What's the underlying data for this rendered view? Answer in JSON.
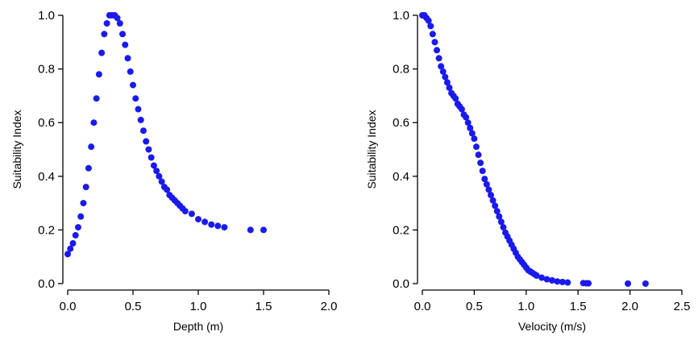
{
  "colors": {
    "points": "#1a1aee",
    "axes": "#000000"
  },
  "chart_data": [
    {
      "type": "scatter",
      "title": "",
      "xlabel": "Depth (m)",
      "ylabel": "Suitability Index",
      "xlim": [
        0,
        2.0
      ],
      "ylim": [
        0,
        1.0
      ],
      "xticks": [
        "0.0",
        "0.5",
        "1.0",
        "1.5",
        "2.0"
      ],
      "yticks": [
        "0.0",
        "0.2",
        "0.4",
        "0.6",
        "0.8",
        "1.0"
      ],
      "grid": false,
      "x": [
        0.0,
        0.02,
        0.04,
        0.06,
        0.08,
        0.1,
        0.12,
        0.14,
        0.16,
        0.18,
        0.2,
        0.22,
        0.24,
        0.26,
        0.28,
        0.3,
        0.32,
        0.34,
        0.36,
        0.38,
        0.4,
        0.42,
        0.44,
        0.46,
        0.48,
        0.5,
        0.52,
        0.54,
        0.56,
        0.58,
        0.6,
        0.62,
        0.64,
        0.66,
        0.68,
        0.7,
        0.72,
        0.74,
        0.76,
        0.78,
        0.8,
        0.82,
        0.84,
        0.86,
        0.88,
        0.9,
        0.95,
        1.0,
        1.05,
        1.1,
        1.15,
        1.2,
        1.4,
        1.5
      ],
      "y": [
        0.11,
        0.13,
        0.15,
        0.18,
        0.21,
        0.25,
        0.3,
        0.36,
        0.43,
        0.51,
        0.6,
        0.69,
        0.78,
        0.86,
        0.93,
        0.97,
        1.0,
        1.0,
        1.0,
        0.99,
        0.97,
        0.93,
        0.89,
        0.84,
        0.79,
        0.74,
        0.69,
        0.65,
        0.61,
        0.57,
        0.53,
        0.5,
        0.47,
        0.44,
        0.42,
        0.4,
        0.38,
        0.36,
        0.35,
        0.33,
        0.32,
        0.31,
        0.3,
        0.29,
        0.28,
        0.27,
        0.26,
        0.24,
        0.23,
        0.22,
        0.215,
        0.21,
        0.2,
        0.2
      ]
    },
    {
      "type": "scatter",
      "title": "",
      "xlabel": "Velocity (m/s)",
      "ylabel": "Suitability Index",
      "xlim": [
        0,
        2.5
      ],
      "ylim": [
        0,
        1.0
      ],
      "xticks": [
        "0.0",
        "0.5",
        "1.0",
        "1.5",
        "2.0",
        "2.5"
      ],
      "yticks": [
        "0.0",
        "0.2",
        "0.4",
        "0.6",
        "0.8",
        "1.0"
      ],
      "grid": false,
      "x": [
        0.0,
        0.02,
        0.04,
        0.06,
        0.08,
        0.1,
        0.12,
        0.14,
        0.16,
        0.18,
        0.2,
        0.22,
        0.24,
        0.26,
        0.28,
        0.3,
        0.32,
        0.34,
        0.36,
        0.38,
        0.4,
        0.42,
        0.44,
        0.46,
        0.48,
        0.5,
        0.52,
        0.54,
        0.56,
        0.58,
        0.6,
        0.62,
        0.64,
        0.66,
        0.68,
        0.7,
        0.72,
        0.74,
        0.76,
        0.78,
        0.8,
        0.82,
        0.84,
        0.86,
        0.88,
        0.9,
        0.92,
        0.94,
        0.96,
        0.98,
        1.0,
        1.02,
        1.04,
        1.06,
        1.08,
        1.1,
        1.15,
        1.2,
        1.25,
        1.3,
        1.35,
        1.4,
        1.55,
        1.58,
        1.6,
        1.98,
        2.15
      ],
      "y": [
        1.0,
        1.0,
        0.99,
        0.98,
        0.96,
        0.93,
        0.9,
        0.87,
        0.84,
        0.81,
        0.79,
        0.77,
        0.75,
        0.73,
        0.71,
        0.7,
        0.69,
        0.67,
        0.66,
        0.65,
        0.63,
        0.62,
        0.6,
        0.58,
        0.56,
        0.54,
        0.51,
        0.48,
        0.45,
        0.42,
        0.39,
        0.37,
        0.35,
        0.33,
        0.31,
        0.29,
        0.27,
        0.25,
        0.23,
        0.21,
        0.19,
        0.175,
        0.16,
        0.145,
        0.13,
        0.115,
        0.1,
        0.09,
        0.08,
        0.07,
        0.06,
        0.05,
        0.045,
        0.04,
        0.035,
        0.03,
        0.022,
        0.016,
        0.012,
        0.008,
        0.006,
        0.004,
        0.002,
        0.001,
        0.001,
        0.0,
        0.0
      ]
    }
  ]
}
